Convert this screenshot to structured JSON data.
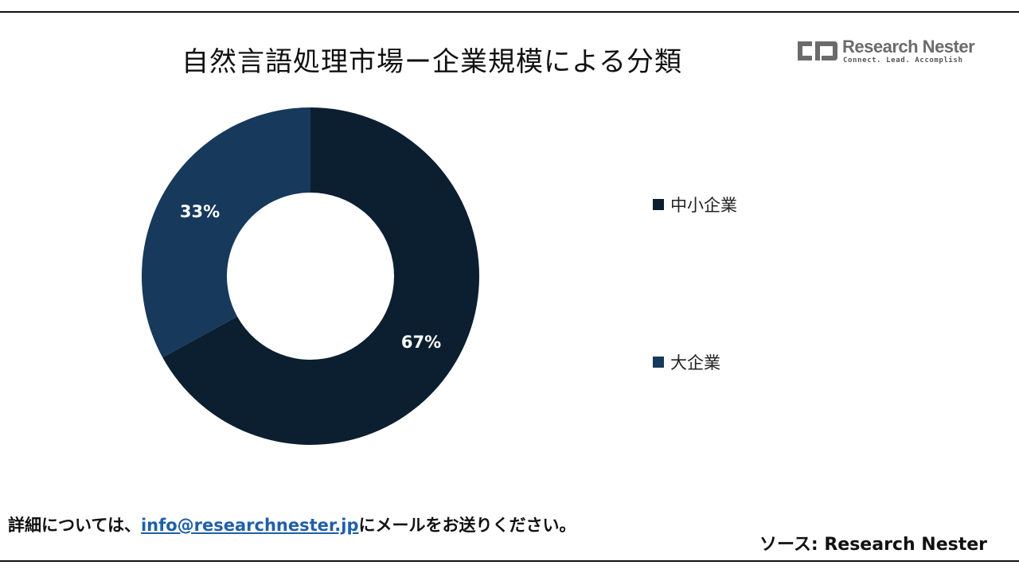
{
  "title": "自然言語処理市場ー企業規模による分類",
  "logo": {
    "name": "Research Nester",
    "tagline": "Connect. Lead. Accomplish"
  },
  "chart_data": {
    "type": "pie",
    "donut": true,
    "title": "自然言語処理市場ー企業規模による分類",
    "legend_placement": "right",
    "slices": [
      {
        "label": "中小企業",
        "value": 67,
        "display": "67%",
        "color": "#0c1f30"
      },
      {
        "label": "大企業",
        "value": 33,
        "display": "33%",
        "color": "#16395c"
      }
    ]
  },
  "footer": {
    "prefix": "詳細については、",
    "email": "info@researchnester.jp",
    "suffix": "にメールをお送りください。"
  },
  "source": "ソース: Research Nester"
}
